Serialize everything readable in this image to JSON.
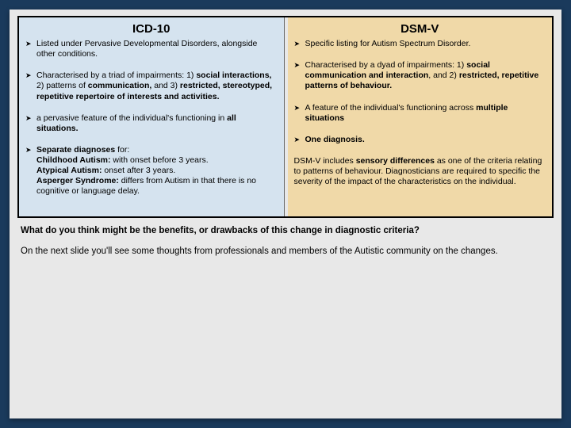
{
  "left": {
    "title": "ICD-10",
    "bg_color": "#d5e3ef",
    "items": [
      {
        "html": "Listed under Pervasive Developmental Disorders, alongside other conditions."
      },
      {
        "html": "Characterised by a triad of impairments: 1) <b>social interactions,</b> 2) patterns of <b>communication,</b> and 3) <b>restricted, stereotyped, repetitive repertoire of interests and activities.</b>"
      },
      {
        "html": "a pervasive feature of the individual's functioning in <b>all situations.</b>"
      },
      {
        "html": "<b>Separate diagnoses</b> for:<br><b>Childhood Autism:</b> with onset before 3 years.<br><b>Atypical Autism:</b> onset after 3 years.<br><b>Asperger Syndrome:</b> differs from Autism in that there is no cognitive or language delay."
      }
    ]
  },
  "right": {
    "title": "DSM-V",
    "bg_color": "#f0d9a8",
    "items": [
      {
        "html": "Specific listing for Autism Spectrum Disorder."
      },
      {
        "html": "Characterised by a dyad of impairments: 1) <b>social communication and interaction</b>, and 2) <b>restricted, repetitive patterns of behaviour.</b>"
      },
      {
        "html": "A feature of the individual's functioning across <b>multiple situations</b>"
      },
      {
        "html": "<b>One diagnosis.</b>"
      }
    ],
    "paragraph": "DSM-V includes <b>sensory differences</b> as one of the criteria relating to patterns of behaviour. Diagnosticians are required to specific the severity of the impact of the characteristics on the individual."
  },
  "footer": {
    "q": "What do you think might be the benefits, or drawbacks of this change in diagnostic criteria?",
    "note": "On the next slide you'll see some thoughts from professionals and members of the Autistic community on the changes."
  },
  "bullet_marker": "➤",
  "colors": {
    "page_bg": "#1a3a5c",
    "panel_bg": "#e8e8e8"
  }
}
